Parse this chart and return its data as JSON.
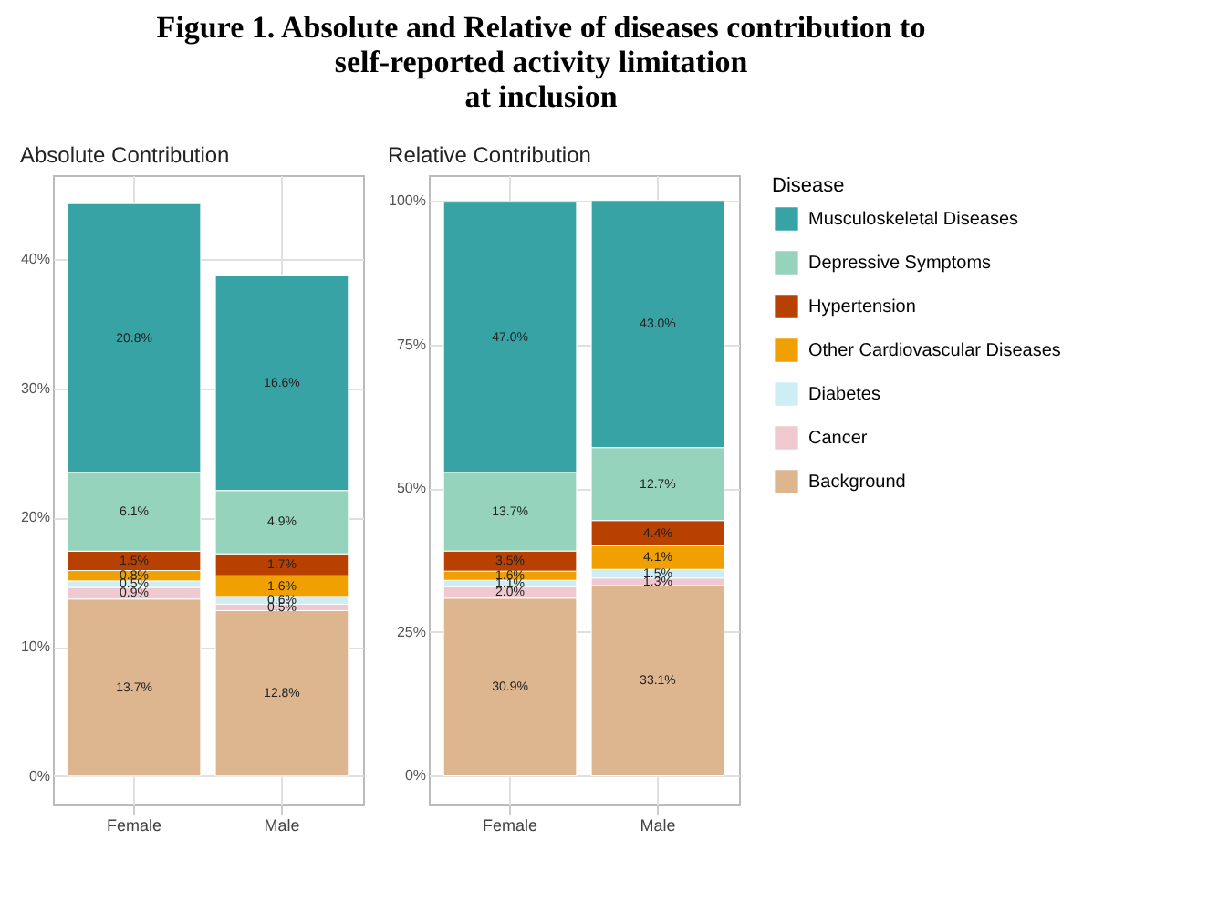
{
  "chart_data": [
    {
      "type": "bar",
      "stacked": true,
      "title": "Absolute Contribution",
      "annotations": [
        "Figure 1. Absolute and Relative of diseases contribution to",
        "self-reported activity limitation",
        "at inclusion"
      ],
      "categories": [
        "Female",
        "Male"
      ],
      "ylim": [
        -2.2,
        46.5
      ],
      "yticks": [
        {
          "value": 0,
          "label": "0%"
        },
        {
          "value": 10,
          "label": "10%"
        },
        {
          "value": 20,
          "label": "20%"
        },
        {
          "value": 30,
          "label": "30%"
        },
        {
          "value": 40,
          "label": "40%"
        }
      ],
      "grid": true,
      "series": [
        {
          "color": "#ddb690",
          "values": [
            13.7,
            12.8
          ],
          "value_labels": [
            "13.7%",
            "12.8%"
          ]
        },
        {
          "color": "#f0c8d0",
          "values": [
            0.9,
            0.5
          ],
          "value_labels": [
            "0.9%",
            "0.5%"
          ]
        },
        {
          "color": "#cdeef5",
          "values": [
            0.5,
            0.6
          ],
          "value_labels": [
            "0.5%",
            "0.6%"
          ]
        },
        {
          "color": "#f0a000",
          "values": [
            0.8,
            1.6
          ],
          "value_labels": [
            "0.8%",
            "1.6%"
          ]
        },
        {
          "color": "#b84000",
          "values": [
            1.5,
            1.7
          ],
          "value_labels": [
            "1.5%",
            "1.7%"
          ]
        },
        {
          "color": "#96d3bc",
          "values": [
            6.1,
            4.9
          ],
          "value_labels": [
            "6.1%",
            "4.9%"
          ]
        },
        {
          "color": "#38a3a5",
          "values": [
            20.8,
            16.6
          ],
          "value_labels": [
            "20.8%",
            "16.6%"
          ]
        }
      ]
    },
    {
      "type": "bar",
      "stacked": true,
      "title": "Relative Contribution",
      "legend_title": "Disease",
      "categories": [
        "Female",
        "Male"
      ],
      "ylim": [
        -5,
        104.5
      ],
      "yticks": [
        {
          "value": 0,
          "label": "0%"
        },
        {
          "value": 25,
          "label": "25%"
        },
        {
          "value": 50,
          "label": "50%"
        },
        {
          "value": 75,
          "label": "75%"
        },
        {
          "value": 100,
          "label": "100%"
        }
      ],
      "grid": true,
      "legend": "right",
      "series": [
        {
          "name": "Background",
          "color": "#ddb690",
          "values": [
            30.9,
            33.1
          ],
          "value_labels": [
            "30.9%",
            "33.1%"
          ]
        },
        {
          "name": "Cancer",
          "color": "#f0c8d0",
          "values": [
            2.0,
            1.3
          ],
          "value_labels": [
            "2.0%",
            "1.3%"
          ]
        },
        {
          "name": "Diabetes",
          "color": "#cdeef5",
          "values": [
            1.1,
            1.5
          ],
          "value_labels": [
            "1.1%",
            "1.5%"
          ]
        },
        {
          "name": "Other Cardiovascular Diseases",
          "color": "#f0a000",
          "values": [
            1.6,
            4.1
          ],
          "value_labels": [
            "1.6%",
            "4.1%"
          ]
        },
        {
          "name": "Hypertension",
          "color": "#b84000",
          "values": [
            3.5,
            4.4
          ],
          "value_labels": [
            "3.5%",
            "4.4%"
          ]
        },
        {
          "name": "Depressive Symptoms",
          "color": "#96d3bc",
          "values": [
            13.7,
            12.7
          ],
          "value_labels": [
            "13.7%",
            "12.7%"
          ]
        },
        {
          "name": "Musculoskeletal Diseases",
          "color": "#38a3a5",
          "values": [
            47.0,
            43.0
          ],
          "value_labels": [
            "47.0%",
            "43.0%"
          ]
        }
      ]
    }
  ]
}
